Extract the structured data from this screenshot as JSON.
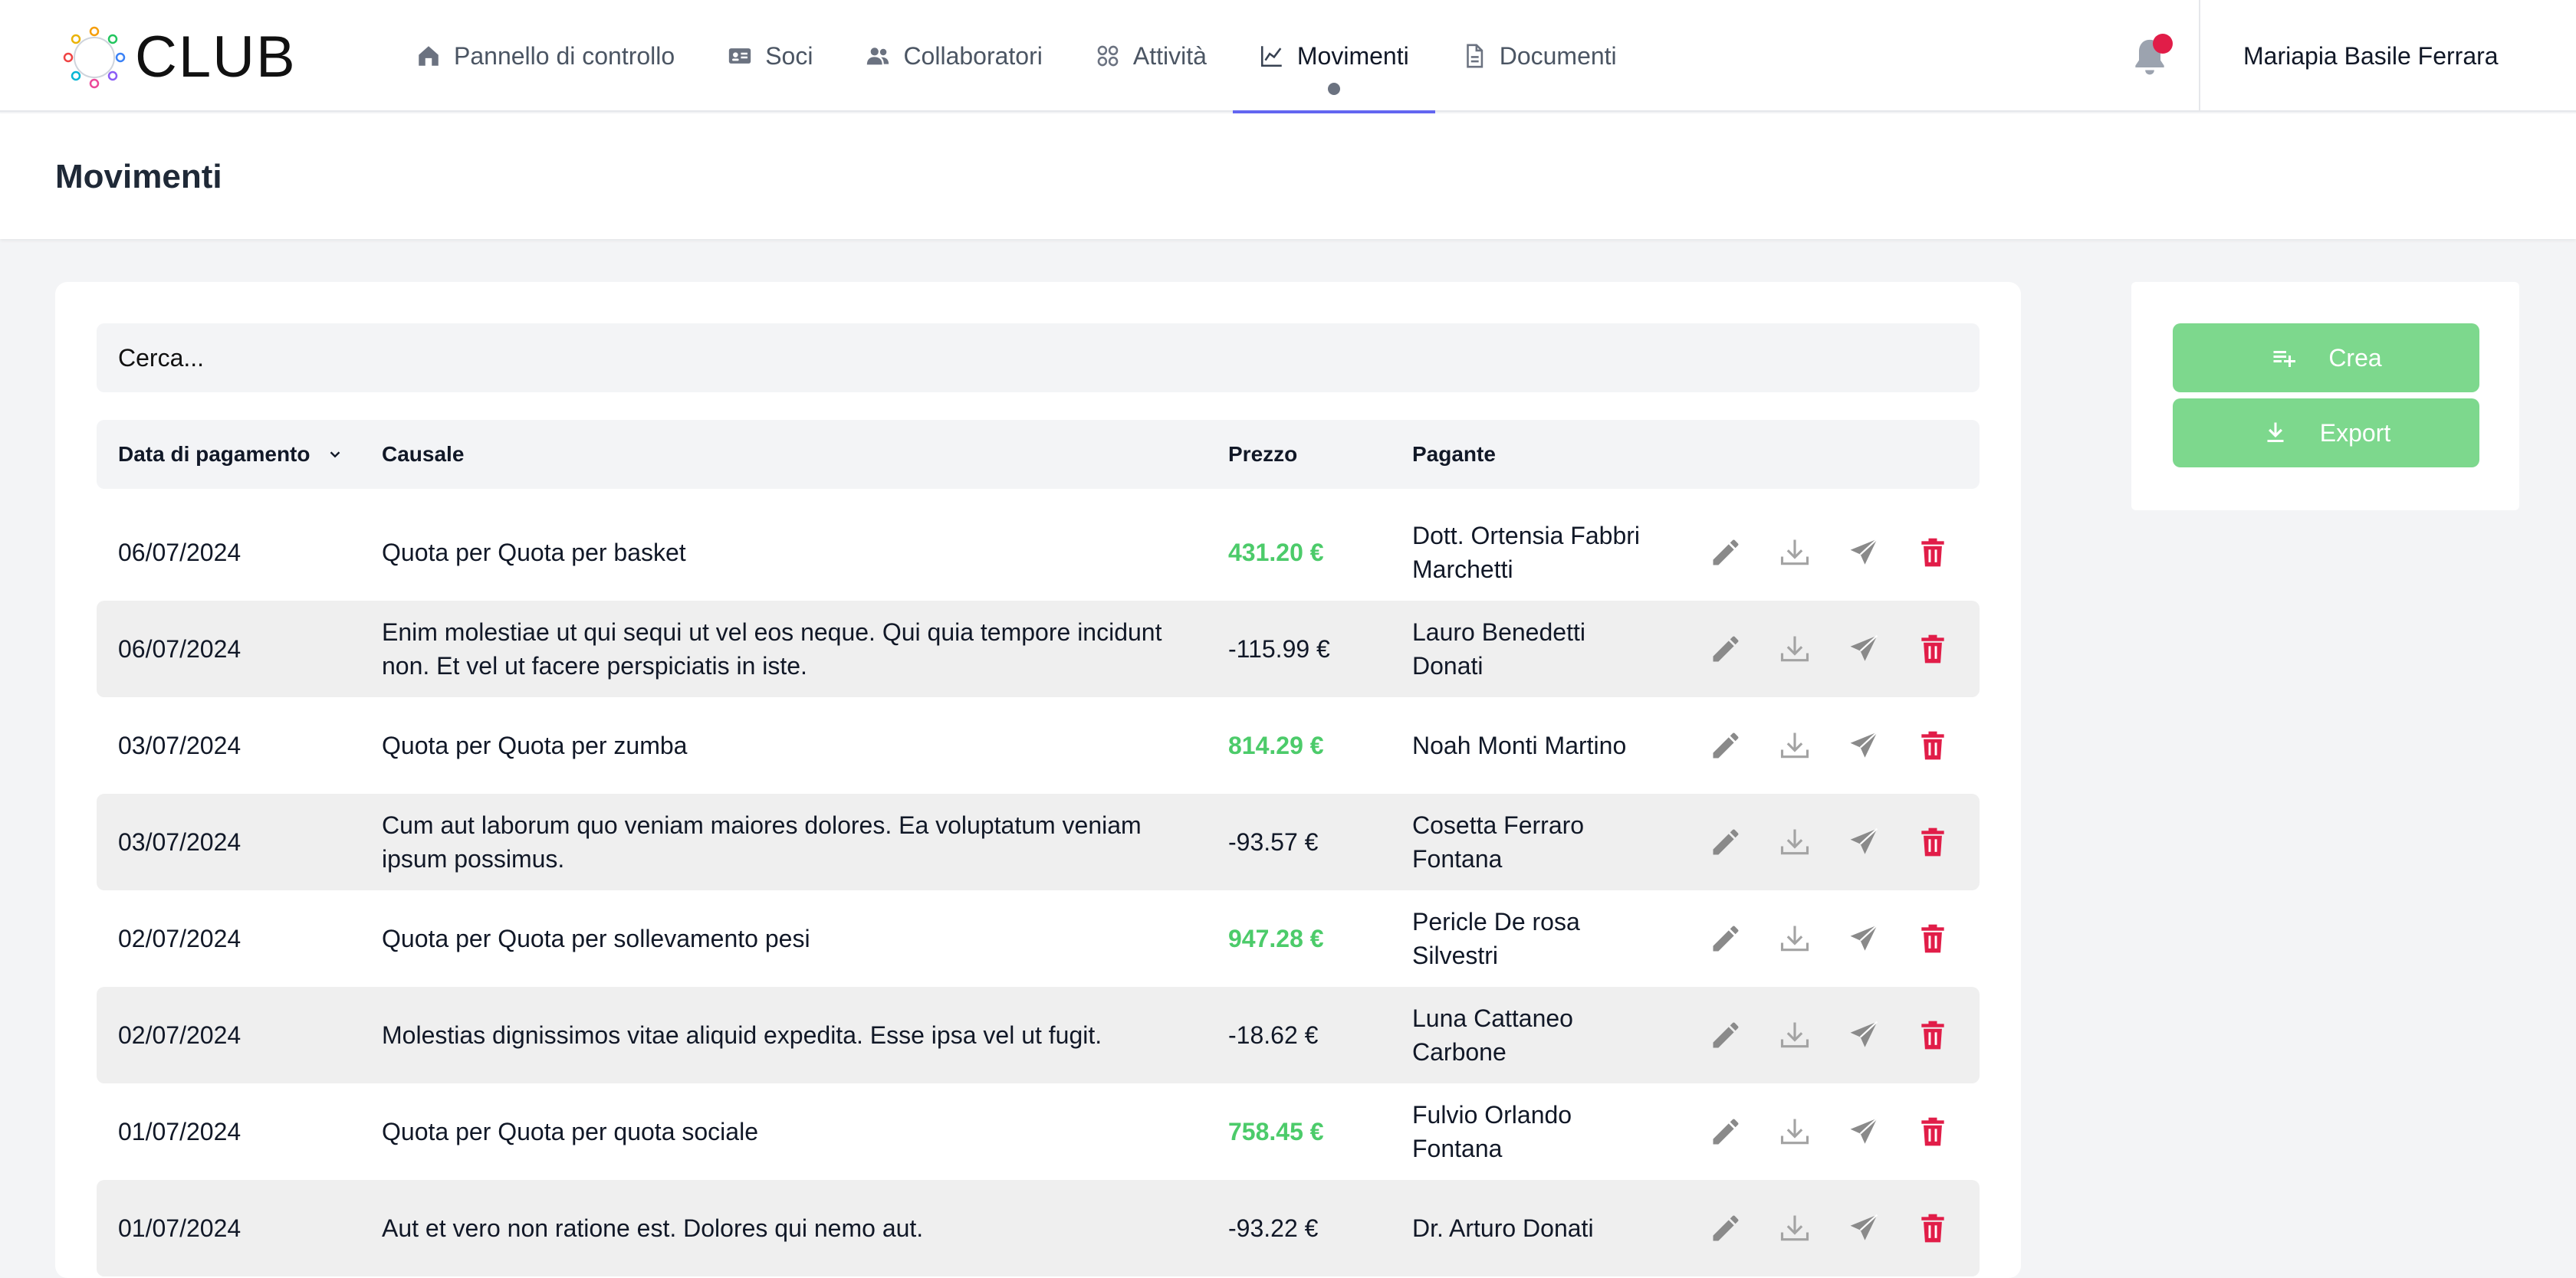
{
  "app": {
    "logo_text": "CLUB"
  },
  "nav": {
    "items": [
      {
        "label": "Pannello di controllo",
        "icon": "home-icon",
        "active": false
      },
      {
        "label": "Soci",
        "icon": "id-card-icon",
        "active": false
      },
      {
        "label": "Collaboratori",
        "icon": "users-icon",
        "active": false
      },
      {
        "label": "Attività",
        "icon": "grid-icon",
        "active": false
      },
      {
        "label": "Movimenti",
        "icon": "chart-line-icon",
        "active": true
      },
      {
        "label": "Documenti",
        "icon": "document-icon",
        "active": false
      }
    ],
    "notifications_icon": "bell-icon",
    "user_name": "Mariapia Basile Ferrara"
  },
  "page": {
    "title": "Movimenti"
  },
  "search": {
    "placeholder": "Cerca..."
  },
  "table": {
    "columns": {
      "date": "Data di pagamento",
      "cause": "Causale",
      "price": "Prezzo",
      "payer": "Pagante"
    },
    "rows": [
      {
        "date": "06/07/2024",
        "cause": "Quota per Quota per basket",
        "price": "431.20 €",
        "positive": true,
        "payer": "Dott. Ortensia Fabbri Marchetti"
      },
      {
        "date": "06/07/2024",
        "cause": "Enim molestiae ut qui sequi ut vel eos neque. Qui quia tempore incidunt non. Et vel ut facere perspiciatis in iste.",
        "price": "-115.99 €",
        "positive": false,
        "payer": "Lauro Benedetti Donati"
      },
      {
        "date": "03/07/2024",
        "cause": "Quota per Quota per zumba",
        "price": "814.29 €",
        "positive": true,
        "payer": "Noah Monti Martino"
      },
      {
        "date": "03/07/2024",
        "cause": "Cum aut laborum quo veniam maiores dolores. Ea voluptatum veniam ipsum possimus.",
        "price": "-93.57 €",
        "positive": false,
        "payer": "Cosetta Ferraro Fontana"
      },
      {
        "date": "02/07/2024",
        "cause": "Quota per Quota per sollevamento pesi",
        "price": "947.28 €",
        "positive": true,
        "payer": "Pericle De rosa Silvestri"
      },
      {
        "date": "02/07/2024",
        "cause": "Molestias dignissimos vitae aliquid expedita. Esse ipsa vel ut fugit.",
        "price": "-18.62 €",
        "positive": false,
        "payer": "Luna Cattaneo Carbone"
      },
      {
        "date": "01/07/2024",
        "cause": "Quota per Quota per quota sociale",
        "price": "758.45 €",
        "positive": true,
        "payer": "Fulvio Orlando Fontana"
      },
      {
        "date": "01/07/2024",
        "cause": "Aut et vero non ratione est. Dolores qui nemo aut.",
        "price": "-93.22 €",
        "positive": false,
        "payer": "Dr. Arturo Donati"
      }
    ],
    "row_actions": [
      "pencil-icon",
      "download-icon",
      "send-icon",
      "trash-icon"
    ]
  },
  "sidebar": {
    "create_label": "Crea",
    "export_label": "Export"
  },
  "colors": {
    "accent": "#6366f1",
    "positive": "#4ccb6a",
    "button": "#7dd88d",
    "danger": "#e11d48",
    "icon_gray": "#8a8a8a"
  }
}
